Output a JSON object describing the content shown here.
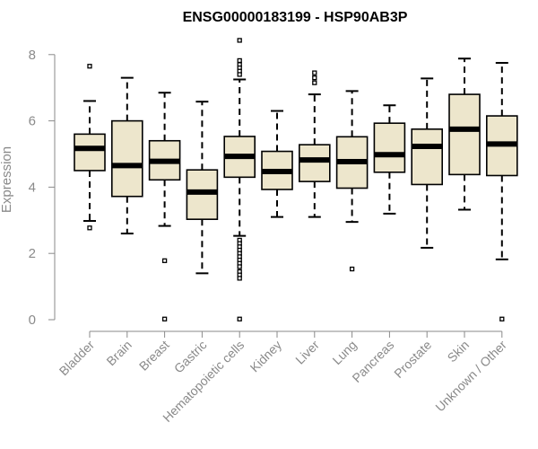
{
  "chart_data": {
    "type": "boxplot",
    "title": "ENSG00000183199 - HSP90AB3P",
    "xlabel": "",
    "ylabel": "Expression",
    "ylim": [
      0,
      8.5
    ],
    "yticks": [
      0,
      2,
      4,
      6,
      8
    ],
    "grid": false,
    "colors": {
      "box_fill": "#ede6cc",
      "box_stroke": "#000000",
      "median": "#000000",
      "axis": "#8a8a8a"
    },
    "categories": [
      "Bladder",
      "Brain",
      "Breast",
      "Gastric",
      "Hematopoietic cells",
      "Kidney",
      "Liver",
      "Lung",
      "Pancreas",
      "Prostate",
      "Skin",
      "Unknown / Other"
    ],
    "boxes": [
      {
        "q1": 4.5,
        "median": 5.17,
        "q3": 5.6,
        "whisker_low": 2.98,
        "whisker_high": 6.6,
        "outliers": [
          7.65,
          2.77
        ]
      },
      {
        "q1": 3.72,
        "median": 4.65,
        "q3": 6.0,
        "whisker_low": 2.6,
        "whisker_high": 7.3,
        "outliers": []
      },
      {
        "q1": 4.22,
        "median": 4.78,
        "q3": 5.4,
        "whisker_low": 2.83,
        "whisker_high": 6.85,
        "outliers": [
          1.78,
          0.02
        ]
      },
      {
        "q1": 3.03,
        "median": 3.85,
        "q3": 4.52,
        "whisker_low": 1.4,
        "whisker_high": 6.58,
        "outliers": []
      },
      {
        "q1": 4.3,
        "median": 4.93,
        "q3": 5.53,
        "whisker_low": 2.53,
        "whisker_high": 7.25,
        "outliers": [
          8.43,
          7.82,
          7.7,
          7.6,
          7.5,
          7.4,
          2.4,
          2.3,
          2.2,
          2.1,
          2.0,
          1.9,
          1.8,
          1.7,
          1.6,
          1.45,
          1.35,
          1.25,
          0.02
        ]
      },
      {
        "q1": 3.93,
        "median": 4.47,
        "q3": 5.08,
        "whisker_low": 3.1,
        "whisker_high": 6.3,
        "outliers": []
      },
      {
        "q1": 4.17,
        "median": 4.82,
        "q3": 5.28,
        "whisker_low": 3.1,
        "whisker_high": 6.8,
        "outliers": [
          7.45,
          7.3,
          7.15
        ]
      },
      {
        "q1": 3.97,
        "median": 4.77,
        "q3": 5.52,
        "whisker_low": 2.95,
        "whisker_high": 6.9,
        "outliers": [
          1.53
        ]
      },
      {
        "q1": 4.45,
        "median": 4.98,
        "q3": 5.93,
        "whisker_low": 3.2,
        "whisker_high": 6.47,
        "outliers": []
      },
      {
        "q1": 4.08,
        "median": 5.23,
        "q3": 5.75,
        "whisker_low": 2.17,
        "whisker_high": 7.28,
        "outliers": []
      },
      {
        "q1": 4.38,
        "median": 5.75,
        "q3": 6.8,
        "whisker_low": 3.32,
        "whisker_high": 7.88,
        "outliers": []
      },
      {
        "q1": 4.35,
        "median": 5.3,
        "q3": 6.15,
        "whisker_low": 1.82,
        "whisker_high": 7.75,
        "outliers": [
          0.02
        ]
      }
    ]
  }
}
